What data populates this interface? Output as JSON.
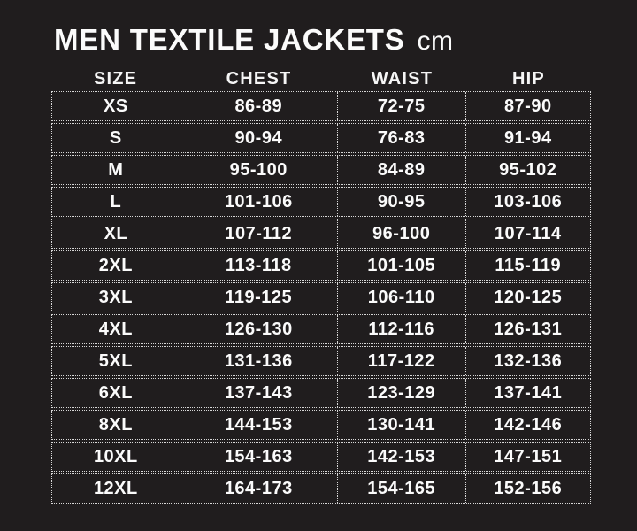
{
  "page": {
    "background_color": "#201d1e",
    "text_color": "#fbfbfb",
    "border_color": "#d8d8d8"
  },
  "title": {
    "main": "MEN TEXTILE JACKETS",
    "unit": "cm"
  },
  "chart_data": {
    "type": "table",
    "title": "MEN TEXTILE JACKETS",
    "unit": "cm",
    "columns": [
      "SIZE",
      "CHEST",
      "WAIST",
      "HIP"
    ],
    "rows": [
      [
        "XS",
        "86-89",
        "72-75",
        "87-90"
      ],
      [
        "S",
        "90-94",
        "76-83",
        "91-94"
      ],
      [
        "M",
        "95-100",
        "84-89",
        "95-102"
      ],
      [
        "L",
        "101-106",
        "90-95",
        "103-106"
      ],
      [
        "XL",
        "107-112",
        "96-100",
        "107-114"
      ],
      [
        "2XL",
        "113-118",
        "101-105",
        "115-119"
      ],
      [
        "3XL",
        "119-125",
        "106-110",
        "120-125"
      ],
      [
        "4XL",
        "126-130",
        "112-116",
        "126-131"
      ],
      [
        "5XL",
        "131-136",
        "117-122",
        "132-136"
      ],
      [
        "6XL",
        "137-143",
        "123-129",
        "137-141"
      ],
      [
        "8XL",
        "144-153",
        "130-141",
        "142-146"
      ],
      [
        "10XL",
        "154-163",
        "142-153",
        "147-151"
      ],
      [
        "12XL",
        "164-173",
        "154-165",
        "152-156"
      ]
    ]
  }
}
